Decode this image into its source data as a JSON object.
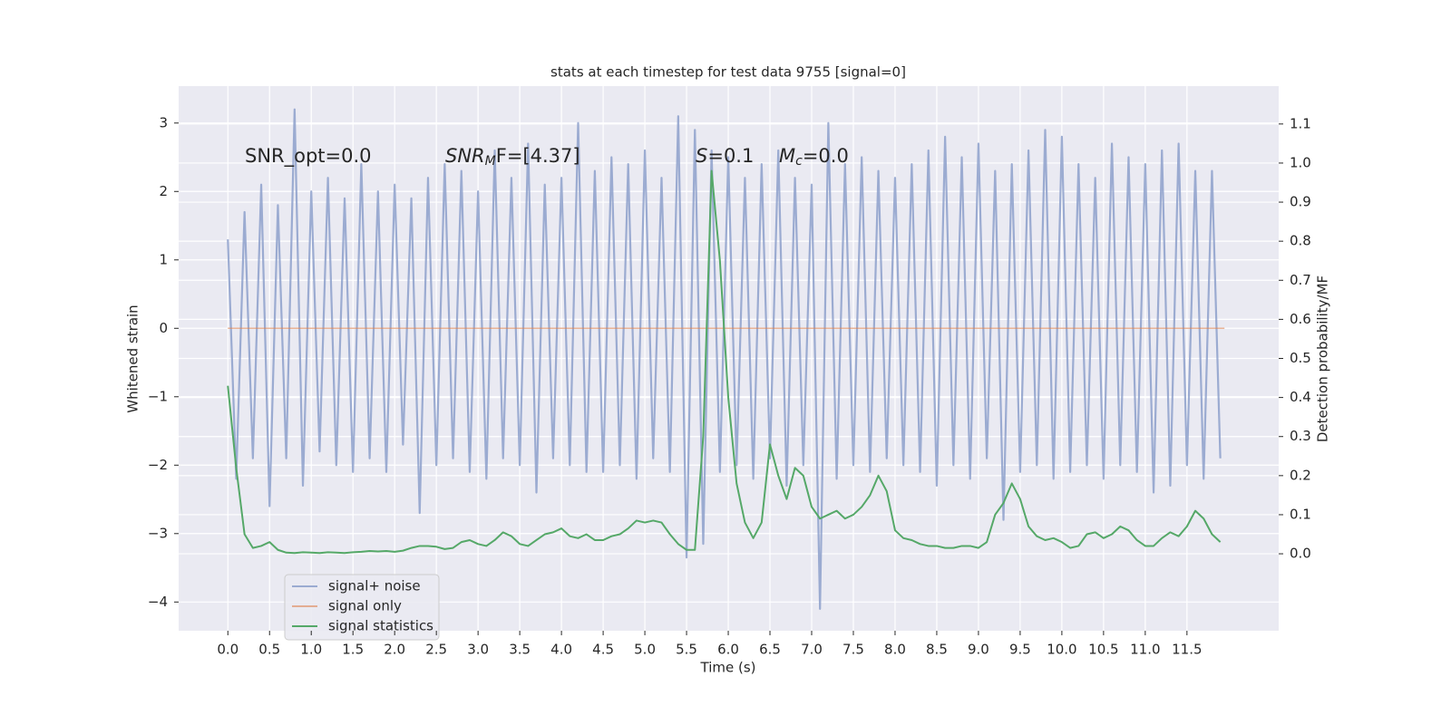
{
  "chart_data": {
    "type": "line",
    "title": "stats at each timestep for test data 9755 [signal=0]",
    "xlabel": "Time (s)",
    "ylabel": "Whitened strain",
    "y2label": "Detection probability/MF",
    "annotations": [
      {
        "main": "SNR_opt=0.0"
      },
      {
        "main": "SNR",
        "sub": "M",
        "rest": "F=[4.37]"
      },
      {
        "main": "S",
        "rest": "=0.1"
      },
      {
        "main": "M",
        "sub": "c",
        "rest": "=0.0"
      }
    ],
    "x": [
      0,
      0.1,
      0.2,
      0.3,
      0.4,
      0.5,
      0.6,
      0.7,
      0.8,
      0.9,
      1,
      1.1,
      1.2,
      1.3,
      1.4,
      1.5,
      1.6,
      1.7,
      1.8,
      1.9,
      2,
      2.1,
      2.2,
      2.3,
      2.4,
      2.5,
      2.6,
      2.7,
      2.8,
      2.9,
      3,
      3.1,
      3.2,
      3.3,
      3.4,
      3.5,
      3.6,
      3.7,
      3.8,
      3.9,
      4,
      4.1,
      4.2,
      4.3,
      4.4,
      4.5,
      4.6,
      4.7,
      4.8,
      4.9,
      5,
      5.1,
      5.2,
      5.3,
      5.4,
      5.5,
      5.6,
      5.7,
      5.8,
      5.9,
      6,
      6.1,
      6.2,
      6.3,
      6.4,
      6.5,
      6.6,
      6.7,
      6.8,
      6.9,
      7,
      7.1,
      7.2,
      7.3,
      7.4,
      7.5,
      7.6,
      7.7,
      7.8,
      7.9,
      8,
      8.1,
      8.2,
      8.3,
      8.4,
      8.5,
      8.6,
      8.7,
      8.8,
      8.9,
      9,
      9.1,
      9.2,
      9.3,
      9.4,
      9.5,
      9.6,
      9.7,
      9.8,
      9.9,
      10,
      10.1,
      10.2,
      10.3,
      10.4,
      10.5,
      10.6,
      10.7,
      10.8,
      10.9,
      11,
      11.1,
      11.2,
      11.3,
      11.4,
      11.5,
      11.6,
      11.7,
      11.8,
      11.9
    ],
    "series": [
      {
        "name": "signal+ noise",
        "color": "#8da0cb",
        "values": [
          1.3,
          -2.2,
          1.7,
          -1.9,
          2.1,
          -2.6,
          1.8,
          -1.9,
          3.2,
          -2.3,
          2.0,
          -1.8,
          2.2,
          -2.0,
          1.9,
          -2.1,
          2.4,
          -1.9,
          2.0,
          -2.1,
          2.1,
          -1.7,
          1.9,
          -2.7,
          2.2,
          -2.0,
          2.4,
          -1.9,
          2.3,
          -2.1,
          2.0,
          -2.2,
          2.6,
          -1.9,
          2.2,
          -2.0,
          2.7,
          -2.4,
          2.1,
          -1.9,
          2.2,
          -2.0,
          3.0,
          -2.1,
          2.3,
          -2.1,
          2.5,
          -2.0,
          2.4,
          -2.2,
          2.6,
          -1.9,
          2.2,
          -2.1,
          3.1,
          -3.35,
          2.9,
          -3.15,
          2.6,
          -2.1,
          2.5,
          -2.0,
          2.2,
          -2.2,
          2.4,
          -1.9,
          2.6,
          -2.3,
          2.2,
          -2.0,
          2.1,
          -4.1,
          3.0,
          -2.2,
          2.4,
          -2.0,
          2.5,
          -2.1,
          2.3,
          -1.9,
          2.2,
          -2.0,
          2.4,
          -2.1,
          2.6,
          -2.3,
          2.8,
          -2.0,
          2.5,
          -2.2,
          2.7,
          -1.9,
          2.3,
          -2.8,
          2.4,
          -2.1,
          2.6,
          -2.0,
          2.9,
          -2.2,
          2.8,
          -2.1,
          2.4,
          -2.0,
          2.2,
          -2.2,
          2.7,
          -2.0,
          2.5,
          -2.1,
          2.4,
          -2.4,
          2.6,
          -2.3,
          2.7,
          -2.0,
          2.3,
          -2.2,
          2.3,
          -1.9
        ]
      },
      {
        "name": "signal only",
        "color": "#dd8452",
        "x": [
          0,
          11.95
        ],
        "values": [
          0,
          0
        ]
      },
      {
        "name": "signal statistics",
        "color": "#55a868",
        "axis": "y2",
        "values": [
          0.43,
          0.22,
          0.05,
          0.015,
          0.02,
          0.03,
          0.01,
          0.003,
          0.002,
          0.004,
          0.003,
          0.002,
          0.004,
          0.003,
          0.002,
          0.004,
          0.005,
          0.007,
          0.006,
          0.007,
          0.005,
          0.008,
          0.015,
          0.02,
          0.02,
          0.018,
          0.012,
          0.015,
          0.03,
          0.035,
          0.025,
          0.02,
          0.035,
          0.055,
          0.045,
          0.025,
          0.02,
          0.035,
          0.05,
          0.055,
          0.065,
          0.045,
          0.04,
          0.05,
          0.035,
          0.035,
          0.045,
          0.05,
          0.065,
          0.085,
          0.08,
          0.085,
          0.08,
          0.05,
          0.025,
          0.01,
          0.01,
          0.3,
          0.98,
          0.75,
          0.4,
          0.18,
          0.08,
          0.04,
          0.08,
          0.28,
          0.2,
          0.14,
          0.22,
          0.2,
          0.12,
          0.09,
          0.1,
          0.11,
          0.09,
          0.1,
          0.12,
          0.15,
          0.2,
          0.16,
          0.06,
          0.04,
          0.035,
          0.025,
          0.02,
          0.02,
          0.015,
          0.015,
          0.02,
          0.02,
          0.015,
          0.03,
          0.1,
          0.13,
          0.18,
          0.14,
          0.07,
          0.045,
          0.035,
          0.04,
          0.03,
          0.015,
          0.02,
          0.05,
          0.055,
          0.04,
          0.05,
          0.07,
          0.06,
          0.035,
          0.02,
          0.02,
          0.04,
          0.055,
          0.045,
          0.07,
          0.11,
          0.09,
          0.05,
          0.03
        ]
      }
    ],
    "xlim": [
      -0.59,
      12.6
    ],
    "xticks": [
      {
        "value": 0,
        "label": "0.0"
      },
      0.5,
      {
        "value": 1,
        "label": "1.0"
      },
      1.5,
      {
        "value": 2,
        "label": "2.0"
      },
      2.5,
      {
        "value": 3,
        "label": "3.0"
      },
      3.5,
      {
        "value": 4,
        "label": "4.0"
      },
      4.5,
      {
        "value": 5,
        "label": "5.0"
      },
      5.5,
      {
        "value": 6,
        "label": "6.0"
      },
      6.5,
      {
        "value": 7,
        "label": "7.0"
      },
      7.5,
      {
        "value": 8,
        "label": "8.0"
      },
      8.5,
      {
        "value": 9,
        "label": "9.0"
      },
      9.5,
      {
        "value": 10,
        "label": "10.0"
      },
      10.5,
      {
        "value": 11,
        "label": "11.0"
      },
      11.5
    ],
    "ylim": [
      -4.42,
      3.54
    ],
    "yticks": [
      {
        "value": -4,
        "label": "−4"
      },
      {
        "value": -3,
        "label": "−3"
      },
      {
        "value": -2,
        "label": "−2"
      },
      {
        "value": -1,
        "label": "−1"
      },
      0,
      1,
      2,
      3
    ],
    "y2lim": [
      -0.197,
      1.197
    ],
    "y2ticks": [
      {
        "value": 0,
        "label": "0.0"
      },
      0.1,
      0.2,
      0.3,
      0.4,
      0.5,
      0.6,
      0.7,
      0.8,
      0.9,
      {
        "value": 1,
        "label": "1.0"
      },
      1.1
    ],
    "grid": true,
    "legend": "lower left"
  }
}
